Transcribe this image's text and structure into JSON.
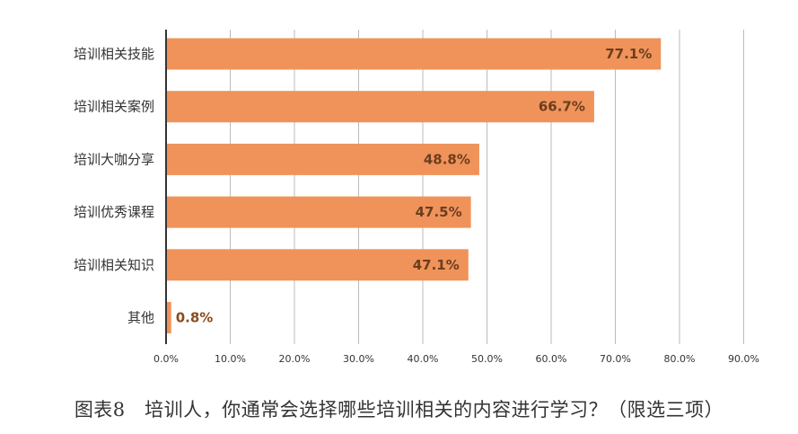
{
  "chart_data": {
    "type": "bar",
    "orientation": "horizontal",
    "categories": [
      "培训相关技能",
      "培训相关案例",
      "培训大咖分享",
      "培训优秀课程",
      "培训相关知识",
      "其他"
    ],
    "values": [
      77.1,
      66.7,
      48.8,
      47.5,
      47.1,
      0.8
    ],
    "data_labels": [
      "77.1%",
      "66.7%",
      "48.8%",
      "47.5%",
      "47.1%",
      "0.8%"
    ],
    "xlim": [
      0,
      90
    ],
    "x_ticks": [
      "0.0%",
      "10.0%",
      "20.0%",
      "30.0%",
      "40.0%",
      "50.0%",
      "60.0%",
      "70.0%",
      "80.0%",
      "90.0%"
    ],
    "grid": "vertical",
    "legend": "none",
    "caption": "图表8　培训人，你通常会选择哪些培训相关的内容进行学习？（限选三项）"
  },
  "colors": {
    "bar": "#F0935A",
    "label_inside": "#6B3E1E",
    "label_outside": "#8B4A1C",
    "grid": "#BBBBBB",
    "axis": "#333333"
  }
}
